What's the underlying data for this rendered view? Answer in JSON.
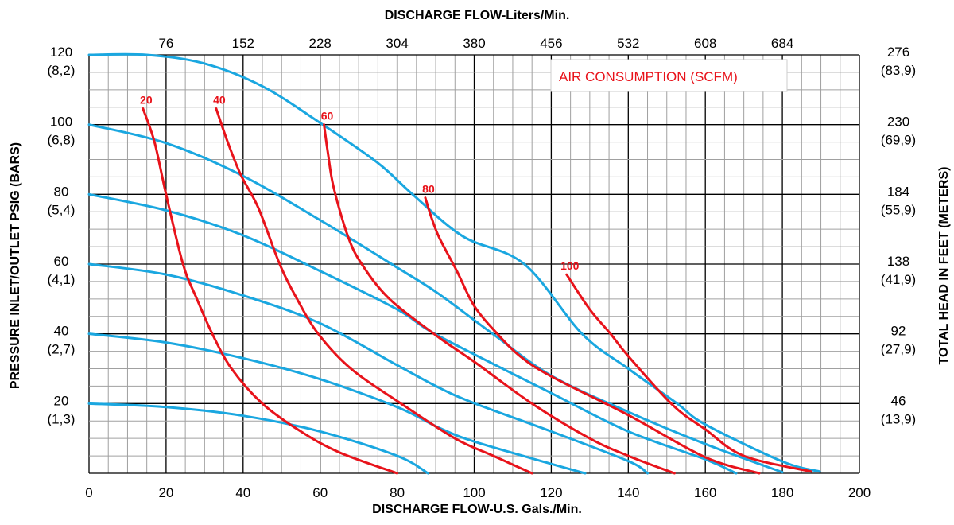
{
  "chart_data": {
    "type": "line",
    "title_top": "DISCHARGE FLOW-Liters/Min.",
    "xlabel": "DISCHARGE FLOW-U.S. Gals./Min.",
    "ylabel_left": "PRESSURE INLET/OUTLET PSIG (BARS)",
    "ylabel_right": "TOTAL HEAD IN FEET (METERS)",
    "legend": "AIR CONSUMPTION (SCFM)",
    "xlim": [
      0,
      200
    ],
    "ylim": [
      0,
      120
    ],
    "grid": true,
    "x_ticks": [
      "0",
      "20",
      "40",
      "60",
      "80",
      "100",
      "120",
      "140",
      "160",
      "180",
      "200"
    ],
    "x_top_ticks": [
      "76",
      "152",
      "228",
      "304",
      "380",
      "456",
      "532",
      "608",
      "684"
    ],
    "y_left_ticks": [
      {
        "psi": "120",
        "bar": "(8,2)"
      },
      {
        "psi": "100",
        "bar": "(6,8)"
      },
      {
        "psi": "80",
        "bar": "(5,4)"
      },
      {
        "psi": "60",
        "bar": "(4,1)"
      },
      {
        "psi": "40",
        "bar": "(2,7)"
      },
      {
        "psi": "20",
        "bar": "(1,3)"
      }
    ],
    "y_right_ticks": [
      {
        "ft": "276",
        "m": "(83,9)"
      },
      {
        "ft": "230",
        "m": "(69,9)"
      },
      {
        "ft": "184",
        "m": "(55,9)"
      },
      {
        "ft": "138",
        "m": "(41,9)"
      },
      {
        "ft": "92",
        "m": "(27,9)"
      },
      {
        "ft": "46",
        "m": "(13,9)"
      }
    ],
    "colors": {
      "pressure_curves": "#1aa7e0",
      "air_curves": "#e8131b",
      "grid_major": "#000000",
      "grid_minor": "#a0a0a0"
    },
    "pressure_curves": [
      {
        "points": [
          [
            0,
            120
          ],
          [
            15,
            120
          ],
          [
            30,
            117.5
          ],
          [
            45,
            111
          ],
          [
            60,
            100.5
          ],
          [
            75,
            89
          ],
          [
            84,
            80
          ],
          [
            97,
            68
          ],
          [
            113,
            60
          ],
          [
            128,
            40
          ],
          [
            140,
            30
          ],
          [
            152.7,
            20
          ],
          [
            160,
            14
          ],
          [
            180,
            3.4
          ],
          [
            189.7,
            0.5
          ]
        ]
      },
      {
        "points": [
          [
            0,
            100
          ],
          [
            20,
            94.7
          ],
          [
            39.4,
            85.6
          ],
          [
            60,
            72.6
          ],
          [
            80,
            59
          ],
          [
            90.6,
            51.6
          ],
          [
            104.8,
            40
          ],
          [
            120,
            28
          ],
          [
            140,
            17.6
          ],
          [
            160,
            8.4
          ],
          [
            180,
            0.3
          ]
        ]
      },
      {
        "points": [
          [
            0,
            80
          ],
          [
            20,
            75.4
          ],
          [
            39.4,
            68.5
          ],
          [
            60,
            58
          ],
          [
            80,
            47
          ],
          [
            90.6,
            39.5
          ],
          [
            120,
            23
          ],
          [
            140,
            12
          ],
          [
            160,
            4
          ],
          [
            168,
            0
          ]
        ]
      },
      {
        "points": [
          [
            0,
            60
          ],
          [
            20,
            57
          ],
          [
            40,
            51
          ],
          [
            60,
            43
          ],
          [
            80,
            31
          ],
          [
            90.6,
            24.7
          ],
          [
            100,
            20.1
          ],
          [
            120,
            12
          ],
          [
            140,
            3.5
          ],
          [
            145,
            0
          ]
        ]
      },
      {
        "points": [
          [
            0,
            40
          ],
          [
            20,
            37.5
          ],
          [
            40,
            33
          ],
          [
            60,
            27
          ],
          [
            80,
            19
          ],
          [
            90.6,
            13.2
          ],
          [
            100,
            9.1
          ],
          [
            120,
            2.7
          ],
          [
            128.8,
            0
          ]
        ]
      },
      {
        "points": [
          [
            0,
            20
          ],
          [
            20,
            19
          ],
          [
            40,
            16.5
          ],
          [
            60,
            12
          ],
          [
            80,
            5
          ],
          [
            88,
            0
          ]
        ]
      }
    ],
    "air_curves": [
      {
        "name": "20",
        "points": [
          [
            14,
            104.6
          ],
          [
            17,
            95
          ],
          [
            20,
            80
          ],
          [
            24.4,
            60
          ],
          [
            28,
            50
          ],
          [
            32,
            40
          ],
          [
            37,
            30
          ],
          [
            45,
            20
          ],
          [
            55,
            12
          ],
          [
            65,
            6
          ],
          [
            80,
            0
          ]
        ]
      },
      {
        "name": "40",
        "points": [
          [
            33,
            104.6
          ],
          [
            36,
            95
          ],
          [
            39.4,
            85.6
          ],
          [
            44,
            76
          ],
          [
            49.5,
            60
          ],
          [
            54,
            50
          ],
          [
            59.5,
            40
          ],
          [
            68,
            30
          ],
          [
            81,
            20
          ],
          [
            95,
            10
          ],
          [
            105,
            5
          ],
          [
            115,
            0
          ]
        ]
      },
      {
        "name": "60",
        "points": [
          [
            61,
            100
          ],
          [
            62,
            92
          ],
          [
            63.5,
            82
          ],
          [
            67.2,
            68
          ],
          [
            70.8,
            60
          ],
          [
            78,
            50
          ],
          [
            90.4,
            39.3
          ],
          [
            100,
            32
          ],
          [
            115,
            20
          ],
          [
            130,
            10
          ],
          [
            140,
            5
          ],
          [
            152,
            0
          ]
        ]
      },
      {
        "name": "80",
        "points": [
          [
            87.3,
            79
          ],
          [
            89,
            73
          ],
          [
            91,
            67.4
          ],
          [
            95.5,
            58
          ],
          [
            100,
            48
          ],
          [
            106,
            40
          ],
          [
            112,
            33.5
          ],
          [
            120,
            27.8
          ],
          [
            140,
            16.7
          ],
          [
            160,
            4.6
          ],
          [
            174,
            0
          ]
        ]
      },
      {
        "name": "100",
        "points": [
          [
            124,
            57
          ],
          [
            130,
            47
          ],
          [
            135.4,
            40
          ],
          [
            140,
            33.6
          ],
          [
            151.5,
            19.6
          ],
          [
            160,
            12.6
          ],
          [
            170,
            5
          ],
          [
            187.5,
            0.5
          ]
        ]
      }
    ]
  }
}
